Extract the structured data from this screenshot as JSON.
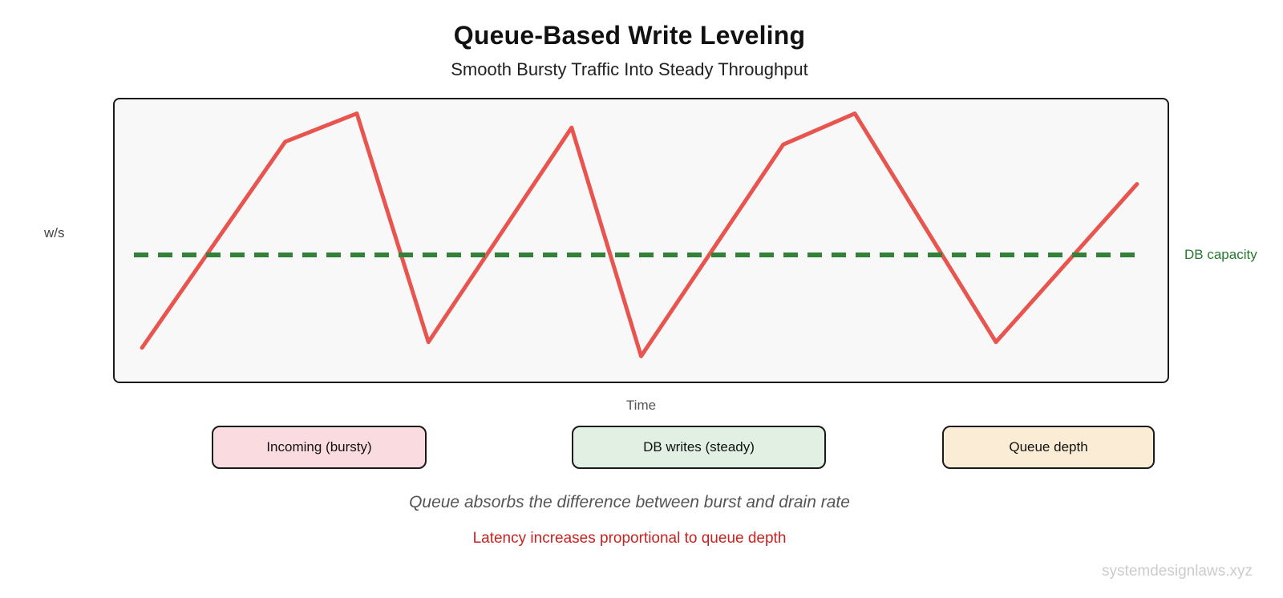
{
  "page": {
    "title": "Queue-Based Write Leveling",
    "subtitle": "Smooth Bursty Traffic Into Steady Throughput",
    "watermark": "systemdesignlaws.xyz"
  },
  "chart": {
    "y_axis_label": "w/s",
    "x_axis_label": "Time",
    "capacity_label": "DB capacity"
  },
  "legend": [
    {
      "label": "Incoming (bursty)",
      "fill": "#fadbe0"
    },
    {
      "label": "DB writes (steady)",
      "fill": "#e1f0e3"
    },
    {
      "label": "Queue depth",
      "fill": "#fbedd5"
    }
  ],
  "notes": {
    "primary": "Queue absorbs the difference between burst and drain rate",
    "warning": "Latency increases proportional to queue depth"
  },
  "colors": {
    "incoming_line": "#e8554f",
    "capacity_line": "#338039",
    "capacity_text": "#27782e",
    "warning_text": "#c62321",
    "chart_background": "#f8f8f8",
    "frame_border": "#1a1a1a"
  },
  "chart_data": {
    "type": "line",
    "title": "Queue-Based Write Leveling",
    "subtitle": "Smooth Bursty Traffic Into Steady Throughput",
    "xlabel": "Time",
    "ylabel": "w/s",
    "grid": false,
    "axes_ticks_visible": false,
    "xlim": [
      0,
      100
    ],
    "ylim": [
      0,
      100
    ],
    "series": [
      {
        "name": "Incoming (bursty)",
        "color": "#e8554f",
        "style": "solid",
        "x": [
          2.6,
          16.2,
          23.0,
          29.8,
          43.4,
          50.0,
          63.5,
          70.3,
          83.7,
          97.1
        ],
        "y": [
          12,
          85,
          95,
          14,
          90,
          9,
          84,
          95,
          14,
          70
        ]
      }
    ],
    "reference_lines": [
      {
        "name": "DB capacity",
        "axis": "y",
        "value": 45,
        "style": "dashed",
        "color": "#338039"
      }
    ],
    "legend_entries": [
      "Incoming (bursty)",
      "DB writes (steady)",
      "Queue depth"
    ],
    "legend_position": "bottom",
    "annotations": [
      "Queue absorbs the difference between burst and drain rate",
      "Latency increases proportional to queue depth"
    ]
  }
}
